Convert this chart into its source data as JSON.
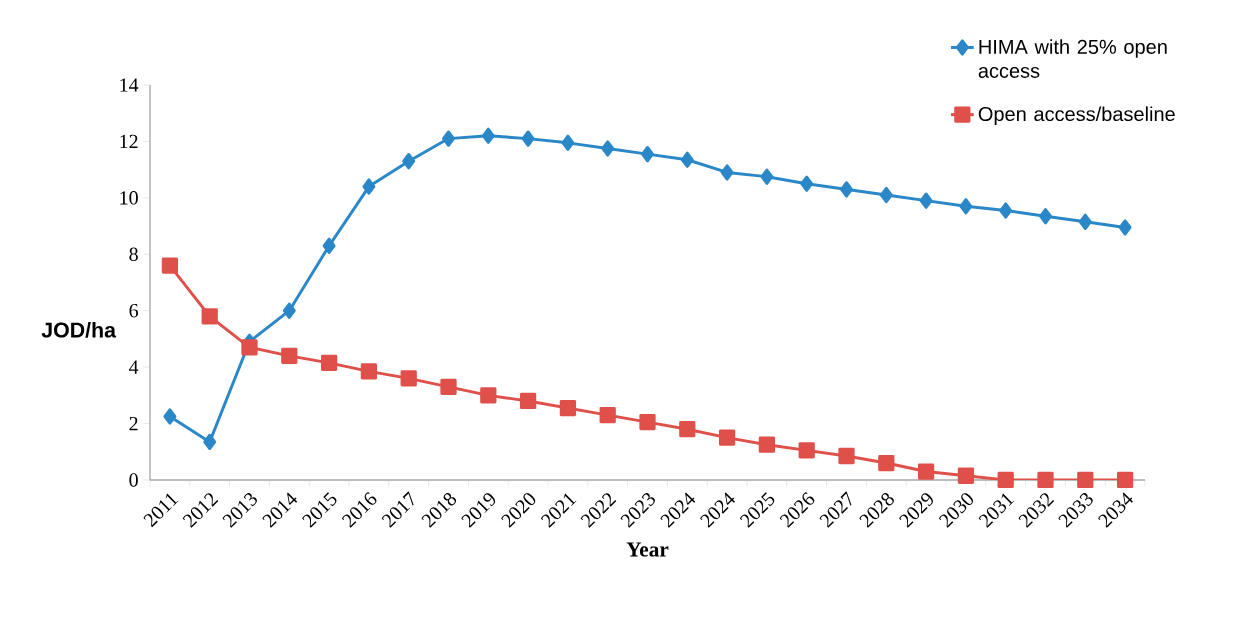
{
  "chart_data": {
    "type": "line",
    "xlabel": "Year",
    "ylabel": "JOD/ha",
    "categories": [
      "2011",
      "2012",
      "2013",
      "2014",
      "2015",
      "2016",
      "2017",
      "2018",
      "2019",
      "2020",
      "2021",
      "2022",
      "2023",
      "2024",
      "2024",
      "2025",
      "2026",
      "2027",
      "2028",
      "2029",
      "2030",
      "2031",
      "2032",
      "2033",
      "2034"
    ],
    "series": [
      {
        "name": "HIMA with 25% open access",
        "color": "#2a87c8",
        "marker": "diamond",
        "values": [
          2.25,
          1.35,
          4.9,
          6.0,
          8.3,
          10.4,
          11.3,
          12.1,
          12.2,
          12.1,
          11.95,
          11.75,
          11.55,
          11.35,
          10.9,
          10.75,
          10.5,
          10.3,
          10.1,
          9.9,
          9.7,
          9.55,
          9.35,
          9.15,
          8.95
        ]
      },
      {
        "name": "Open access/baseline",
        "color": "#e0504a",
        "marker": "square",
        "values": [
          7.6,
          5.8,
          4.7,
          4.4,
          4.15,
          3.85,
          3.6,
          3.3,
          3.0,
          2.8,
          2.55,
          2.3,
          2.05,
          1.8,
          1.5,
          1.25,
          1.05,
          0.85,
          0.6,
          0.3,
          0.15,
          0,
          0,
          0,
          0
        ]
      }
    ],
    "ylim": [
      0,
      14
    ],
    "yticks": [
      0,
      2,
      4,
      6,
      8,
      10,
      12,
      14
    ],
    "grid": false,
    "legend": "top right"
  }
}
